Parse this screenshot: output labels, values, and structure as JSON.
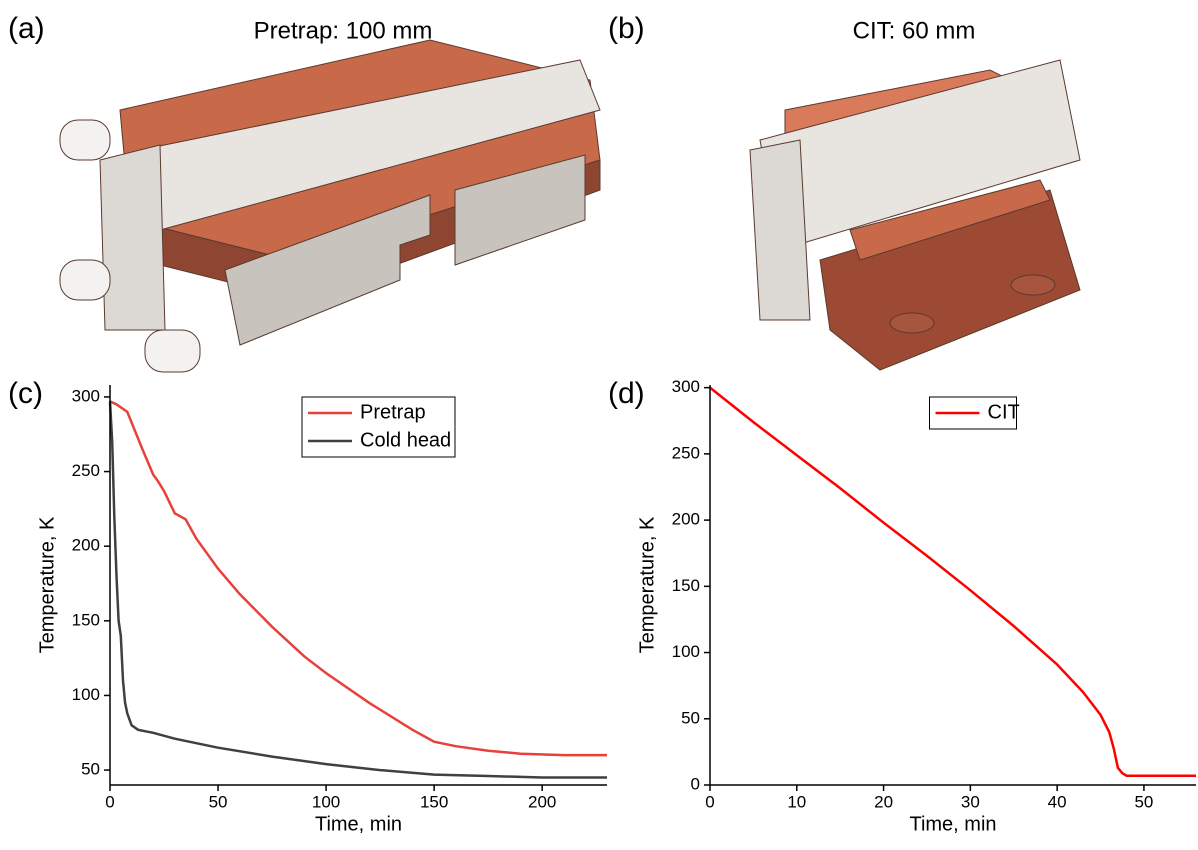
{
  "panels": [
    {
      "label": "(a)",
      "title": "Pretrap: 100 mm"
    },
    {
      "label": "(b)",
      "title": "CIT: 60 mm"
    }
  ],
  "chart_data": [
    {
      "type": "line",
      "panel": "(c)",
      "x_label": "Time, min",
      "y_label": "Temperature, K",
      "xlim": [
        0,
        230
      ],
      "xticks": [
        0,
        50,
        100,
        150,
        200
      ],
      "ylim": [
        40,
        308
      ],
      "yticks": [
        50,
        100,
        150,
        200,
        250,
        300
      ],
      "legend": "top-center",
      "series": [
        {
          "name": "Pretrap",
          "color": "#e8403a",
          "x": [
            0,
            3,
            8,
            15,
            20,
            22,
            25,
            30,
            35,
            40,
            50,
            60,
            75,
            90,
            100,
            120,
            140,
            150,
            160,
            175,
            190,
            210,
            230
          ],
          "values": [
            297,
            295,
            290,
            265,
            248,
            244,
            237,
            222,
            218,
            205,
            185,
            168,
            146,
            126,
            115,
            95,
            77,
            69,
            66,
            63,
            61,
            60,
            60
          ]
        },
        {
          "name": "Cold head",
          "color": "#404040",
          "x": [
            0,
            1,
            2,
            3,
            4,
            5,
            6,
            7,
            8,
            10,
            13,
            20,
            30,
            50,
            75,
            100,
            125,
            150,
            175,
            200,
            230
          ],
          "values": [
            297,
            270,
            220,
            180,
            150,
            140,
            110,
            95,
            88,
            80,
            77,
            75,
            71,
            65,
            59,
            54,
            50,
            47,
            46,
            45,
            45
          ]
        }
      ]
    },
    {
      "type": "line",
      "panel": "(d)",
      "x_label": "Time, min",
      "y_label": "Temperature, K",
      "xlim": [
        0,
        56
      ],
      "xticks": [
        0,
        10,
        20,
        30,
        40,
        50
      ],
      "ylim": [
        0,
        302
      ],
      "yticks": [
        0,
        50,
        100,
        150,
        200,
        250,
        300
      ],
      "legend": "top-center",
      "series": [
        {
          "name": "CIT",
          "color": "#ff0000",
          "x": [
            0,
            5,
            10,
            15,
            20,
            25,
            30,
            35,
            40,
            43,
            45,
            46,
            46.5,
            47,
            47.5,
            48,
            50,
            56
          ],
          "values": [
            300,
            274,
            249,
            224,
            198,
            173,
            147,
            120,
            91,
            70,
            53,
            40,
            28,
            13,
            9,
            7,
            7,
            7
          ]
        }
      ]
    }
  ]
}
